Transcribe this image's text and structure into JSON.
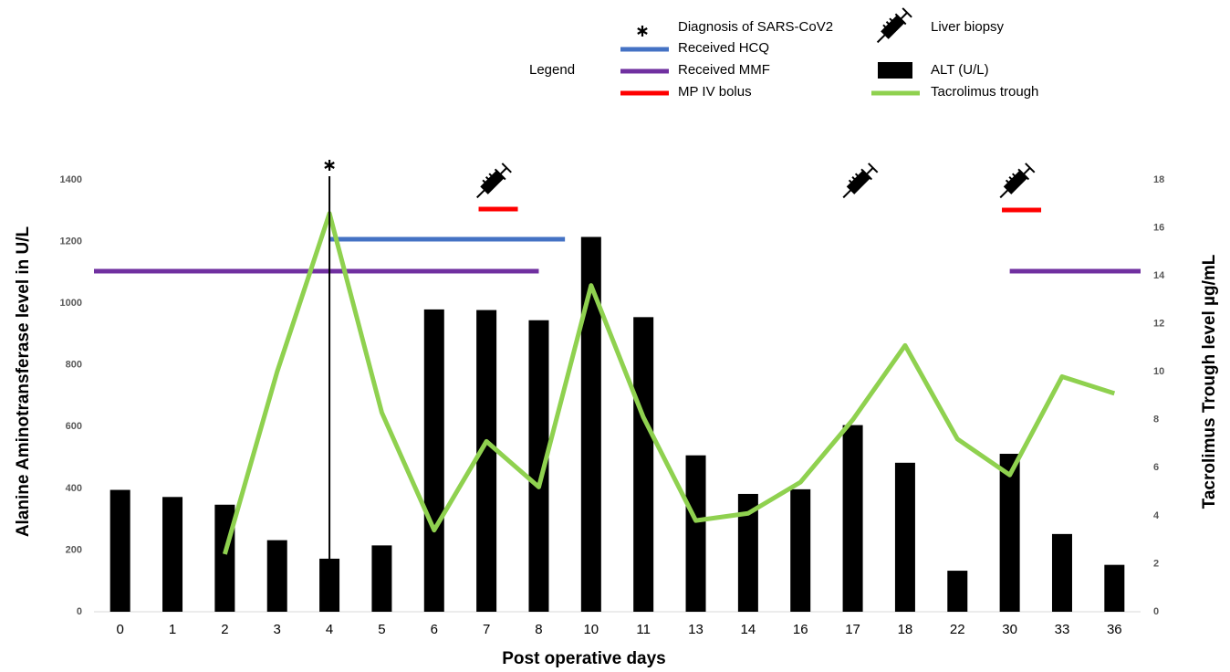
{
  "chart_data": {
    "type": "bar",
    "legend_title": "Legend",
    "legend_items": [
      {
        "label": "Diagnosis of SARS-CoV2"
      },
      {
        "label": "Received HCQ",
        "color": "#4472c4"
      },
      {
        "label": "Received MMF",
        "color": "#7030a0"
      },
      {
        "label": "MP IV bolus",
        "color": "#ff0000"
      },
      {
        "label": "Liver biopsy"
      }
    ],
    "x_label": "Post operative days",
    "y_label": "Alanine Aminotransferase level in U/L",
    "y2_label": "Tacrolimus Trough level µg/mL",
    "categories": [
      "0",
      "1",
      "2",
      "3",
      "4",
      "5",
      "6",
      "7",
      "8",
      "10",
      "11",
      "13",
      "14",
      "16",
      "17",
      "18",
      "22",
      "30",
      "33",
      "36"
    ],
    "series": [
      {
        "name": "ALT (U/L)",
        "type": "bar",
        "color": "#000000",
        "values": [
          395,
          372,
          347,
          232,
          172,
          215,
          980,
          978,
          945,
          1215,
          955,
          507,
          382,
          397,
          605,
          483,
          133,
          512,
          252,
          152
        ]
      },
      {
        "name": "Tacrolimus trough",
        "type": "line",
        "color": "#8fd14f",
        "axis": "y2",
        "values": [
          null,
          null,
          2.4,
          10,
          16.6,
          8.3,
          3.4,
          7.1,
          5.2,
          13.6,
          8.1,
          3.8,
          4.1,
          5.4,
          8,
          11.1,
          7.2,
          5.7,
          9.8,
          9.1
        ]
      }
    ],
    "ylim": [
      0,
      1400
    ],
    "yticks": [
      0,
      200,
      400,
      600,
      800,
      1000,
      1200,
      1400
    ],
    "y2lim": [
      0,
      18
    ],
    "y2ticks": [
      0,
      2,
      4,
      6,
      8,
      10,
      12,
      14,
      16,
      18
    ]
  }
}
